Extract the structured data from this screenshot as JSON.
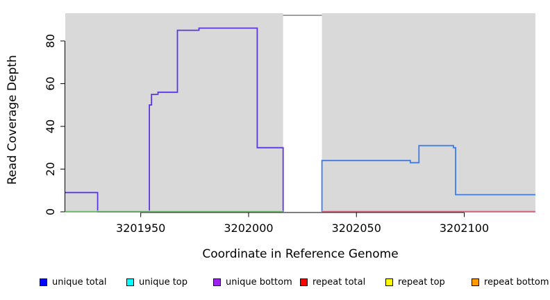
{
  "chart_data": {
    "type": "line",
    "title": "",
    "xlabel": "Coordinate in Reference Genome",
    "ylabel": "Read Coverage Depth",
    "xlim": [
      3201915,
      3202133
    ],
    "ylim": [
      0,
      93
    ],
    "x_ticks": [
      3201950,
      3202000,
      3202050,
      3202100
    ],
    "y_ticks": [
      0,
      20,
      40,
      60,
      80
    ],
    "grid": false,
    "plot_background_color": "#d9d9d9",
    "highlight_band": {
      "x_start": 3202016,
      "x_end": 3202034,
      "fill": "#ffffff",
      "top_border_color": "#8c8c8c",
      "top_value": 92
    },
    "series": [
      {
        "name": "unique coverage left segment",
        "color": "#5b36e0",
        "width": 1.8,
        "step": true,
        "points": [
          [
            3201915,
            9
          ],
          [
            3201930,
            9
          ],
          [
            3201930,
            0
          ],
          [
            3201954,
            0
          ],
          [
            3201954,
            50
          ],
          [
            3201955,
            50
          ],
          [
            3201955,
            55
          ],
          [
            3201958,
            55
          ],
          [
            3201958,
            56
          ],
          [
            3201967,
            56
          ],
          [
            3201967,
            85
          ],
          [
            3201977,
            85
          ],
          [
            3201977,
            86
          ],
          [
            3202004,
            86
          ],
          [
            3202004,
            30
          ],
          [
            3202016,
            30
          ],
          [
            3202016,
            0
          ]
        ]
      },
      {
        "name": "unique coverage right segment",
        "color": "#3d7be8",
        "width": 1.8,
        "step": true,
        "points": [
          [
            3202034,
            0
          ],
          [
            3202034,
            24
          ],
          [
            3202075,
            24
          ],
          [
            3202075,
            23
          ],
          [
            3202079,
            23
          ],
          [
            3202079,
            31
          ],
          [
            3202095,
            31
          ],
          [
            3202095,
            30
          ],
          [
            3202096,
            30
          ],
          [
            3202096,
            8
          ],
          [
            3202133,
            8
          ]
        ]
      },
      {
        "name": "left region zero line",
        "color": "#4fae54",
        "fringe_color": "#d6d67c",
        "width": 1.4,
        "points": [
          [
            3201915,
            0
          ],
          [
            3202016,
            0
          ]
        ]
      },
      {
        "name": "right region zero line",
        "color": "#d04a68",
        "fringe_color": "#eba9b8",
        "width": 1.4,
        "points": [
          [
            3202034,
            0
          ],
          [
            3202133,
            0
          ]
        ]
      }
    ],
    "legend": {
      "position": "bottom",
      "entries": [
        {
          "label": "unique total",
          "color": "#0000ff"
        },
        {
          "label": "unique top",
          "color": "#00ffff"
        },
        {
          "label": "unique bottom",
          "color": "#a020f0"
        },
        {
          "label": "repeat total",
          "color": "#ff0000"
        },
        {
          "label": "repeat top",
          "color": "#ffff00"
        },
        {
          "label": "repeat bottom",
          "color": "#ff9900"
        }
      ]
    }
  }
}
